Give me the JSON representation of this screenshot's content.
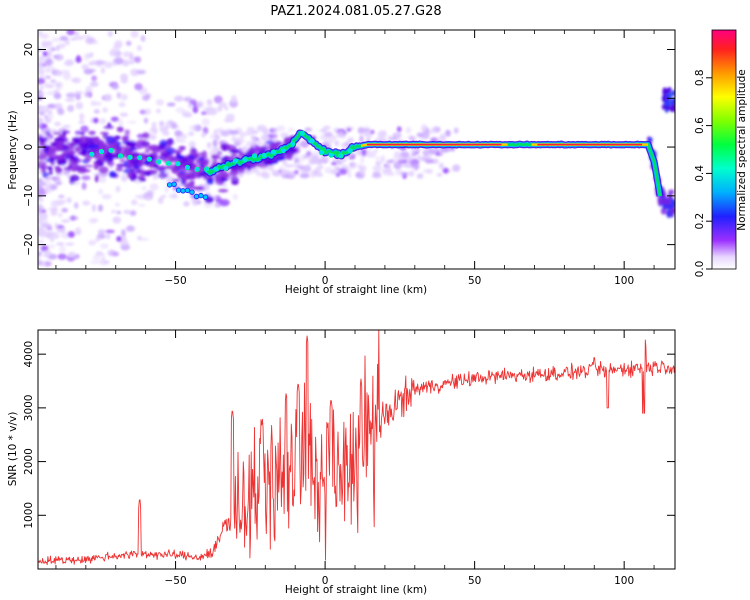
{
  "figure": {
    "title": "PAZ1.2024.081.05.27.G28"
  },
  "chart_data": [
    {
      "type": "heatmap",
      "xlabel": "Height of straight line (km)",
      "ylabel": "Frequency (Hz)",
      "xlim": [
        -96,
        117
      ],
      "ylim": [
        -25,
        24
      ],
      "xticks": [
        -50,
        0,
        50,
        100
      ],
      "yticks": [
        20,
        10,
        0,
        -10,
        -20
      ],
      "colorbar": {
        "label": "Normalized spectral amplitude",
        "range": [
          0,
          1
        ],
        "ticks": [
          0.0,
          0.2,
          0.4,
          0.6,
          0.8
        ],
        "colormap": "rainbow"
      },
      "ridge": {
        "x": [
          -95,
          -80,
          -72,
          -65,
          -55,
          -45,
          -38,
          -30,
          -20,
          -12,
          -8,
          -4,
          0,
          5,
          10,
          14,
          20,
          40,
          60,
          65,
          70,
          90,
          108,
          110,
          112,
          115
        ],
        "y": [
          -1.5,
          -1.5,
          -0.5,
          -2,
          -3,
          -4,
          -5,
          -3,
          -2,
          0,
          3,
          1,
          -1,
          -1.5,
          0,
          0.5,
          0.5,
          0.5,
          0.5,
          0.5,
          0.5,
          0.5,
          0.5,
          -3,
          -10,
          -12
        ]
      },
      "high_branch": {
        "x": [
          113,
          117
        ],
        "y": [
          8,
          12
        ]
      }
    },
    {
      "type": "line",
      "xlabel": "Height of straight line (km)",
      "ylabel": "SNR (10 * v/v)",
      "xlim": [
        -96,
        117
      ],
      "ylim": [
        0,
        4450
      ],
      "xticks": [
        -50,
        0,
        50,
        100
      ],
      "yticks": [
        1000,
        2000,
        3000,
        4000
      ],
      "color": "#ee3333",
      "series": [
        {
          "x": [
            -96,
            -80,
            -70,
            -60,
            -50,
            -42,
            -38,
            -35,
            -33,
            -30,
            -27,
            -24,
            -21,
            -18,
            -15,
            -12,
            -9,
            -7,
            -5,
            -3,
            0,
            3,
            6,
            9,
            12,
            15,
            18,
            21,
            24,
            27,
            30,
            35,
            40,
            50,
            60,
            70,
            80,
            90,
            95,
            100,
            105,
            110,
            117
          ],
          "y": [
            150,
            180,
            250,
            280,
            260,
            220,
            300,
            600,
            900,
            1100,
            1200,
            1400,
            1500,
            1600,
            1700,
            1800,
            1900,
            1900,
            1700,
            1400,
            1500,
            1650,
            1800,
            1950,
            2100,
            2300,
            2600,
            2900,
            3100,
            3200,
            3350,
            3400,
            3450,
            3550,
            3600,
            3620,
            3650,
            3700,
            3700,
            3730,
            3750,
            3770,
            3770
          ]
        }
      ],
      "peaks": {
        "x": [
          -62,
          -31,
          -21,
          -13,
          -9,
          -6,
          2,
          12,
          90,
          107
        ],
        "y": [
          1350,
          3000,
          2800,
          3300,
          3500,
          4350,
          3200,
          3550,
          4000,
          4300
        ]
      }
    }
  ]
}
